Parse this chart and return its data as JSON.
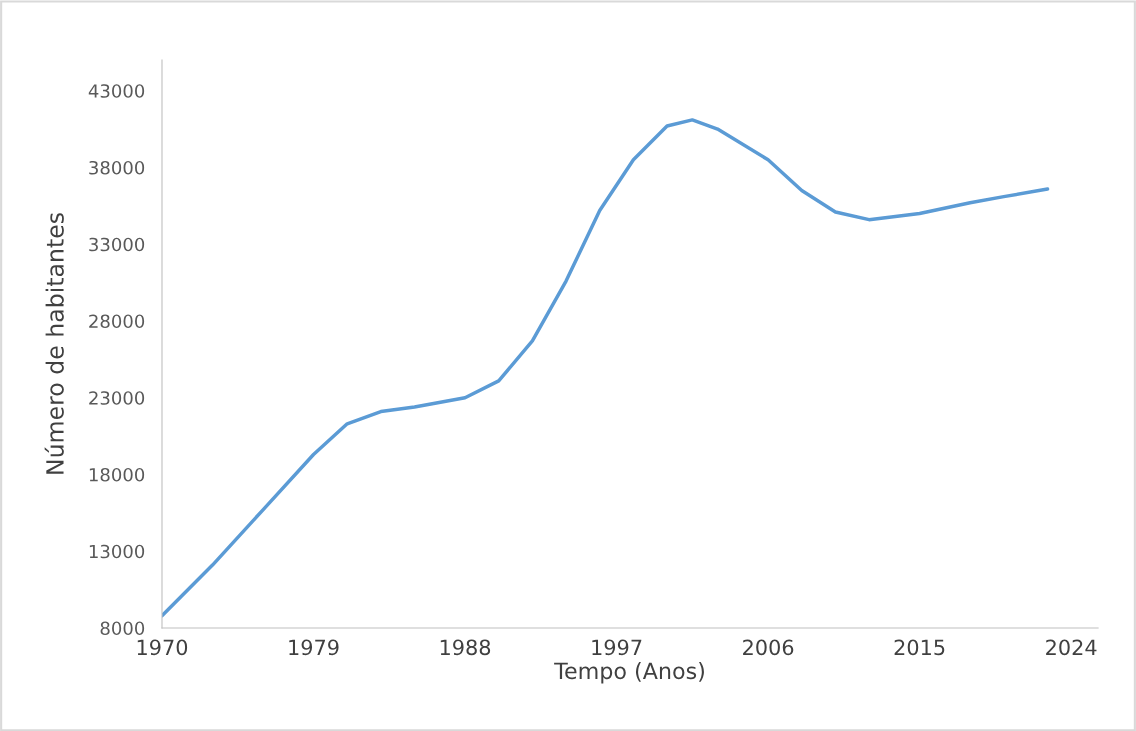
{
  "chart_data": {
    "type": "line",
    "xlabel": "Tempo (Anos)",
    "ylabel": "Número de habitantes",
    "x": [
      1970,
      1973,
      1976,
      1979,
      1981,
      1983,
      1985,
      1988,
      1990,
      1992,
      1994,
      1996,
      1998,
      2000,
      2001.5,
      2003,
      2006,
      2008,
      2010,
      2012,
      2015,
      2018,
      2020,
      2022.6
    ],
    "series": [
      {
        "color": "#5b9bd5",
        "values": [
          8800,
          12100,
          15700,
          19300,
          21300,
          22100,
          22400,
          23000,
          24100,
          26700,
          30600,
          35200,
          38500,
          40700,
          41100,
          40500,
          38500,
          36500,
          35100,
          34600,
          35000,
          35700,
          36100,
          36600
        ]
      }
    ],
    "xlim": [
      1970,
      2025.6
    ],
    "xticks": [
      1970,
      1979,
      1988,
      1997,
      2006,
      2015,
      2024
    ],
    "ylim": [
      8000,
      45000
    ],
    "yticks": [
      8000,
      13000,
      18000,
      23000,
      28000,
      33000,
      38000,
      43000
    ],
    "grid": false,
    "legend": false,
    "marker": "none",
    "line_style": "solid"
  }
}
